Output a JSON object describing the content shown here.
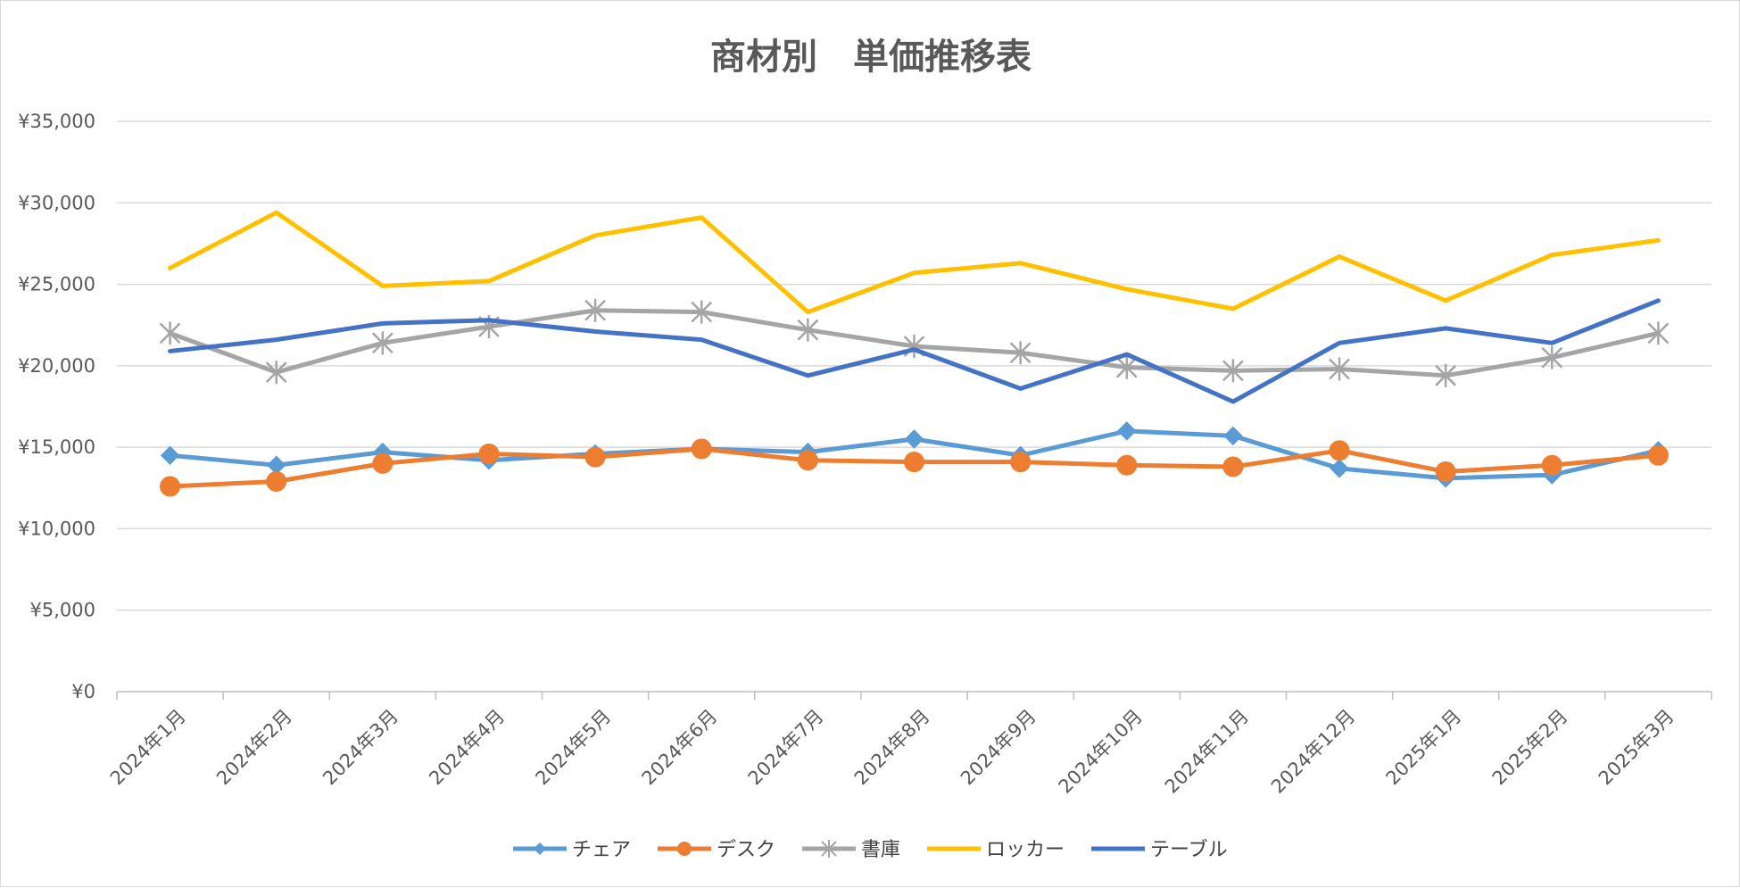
{
  "chart_data": {
    "type": "line",
    "title": "商材別　単価推移表",
    "xlabel": "",
    "ylabel": "",
    "ylim": [
      0,
      35000
    ],
    "yticks": [
      0,
      5000,
      10000,
      15000,
      20000,
      25000,
      30000,
      35000
    ],
    "ytick_labels": [
      "¥0",
      "¥5,000",
      "¥10,000",
      "¥15,000",
      "¥20,000",
      "¥25,000",
      "¥30,000",
      "¥35,000"
    ],
    "grid": true,
    "legend_position": "bottom",
    "categories": [
      "2024年1月",
      "2024年2月",
      "2024年3月",
      "2024年4月",
      "2024年5月",
      "2024年6月",
      "2024年7月",
      "2024年8月",
      "2024年9月",
      "2024年10月",
      "2024年11月",
      "2024年12月",
      "2025年1月",
      "2025年2月",
      "2025年3月"
    ],
    "series": [
      {
        "name": "チェア",
        "color": "#5b9bd5",
        "marker": "diamond",
        "values": [
          14500,
          13900,
          14700,
          14200,
          14600,
          14900,
          14700,
          15500,
          14500,
          16000,
          15700,
          13700,
          13100,
          13300,
          14800
        ]
      },
      {
        "name": "デスク",
        "color": "#ed7d31",
        "marker": "circle",
        "values": [
          12600,
          12900,
          14000,
          14600,
          14400,
          14900,
          14200,
          14100,
          14100,
          13900,
          13800,
          14800,
          13500,
          13900,
          14500
        ]
      },
      {
        "name": "書庫",
        "color": "#a5a5a5",
        "marker": "star",
        "values": [
          22000,
          19600,
          21400,
          22400,
          23400,
          23300,
          22200,
          21200,
          20800,
          19900,
          19700,
          19800,
          19400,
          20500,
          22000
        ]
      },
      {
        "name": "ロッカー",
        "color": "#ffc000",
        "marker": "none",
        "values": [
          26000,
          29400,
          24900,
          25200,
          28000,
          29100,
          23300,
          25700,
          26300,
          24700,
          23500,
          26700,
          24000,
          26800,
          27700
        ]
      },
      {
        "name": "テーブル",
        "color": "#4472c4",
        "marker": "none",
        "values": [
          20900,
          21600,
          22600,
          22800,
          22100,
          21600,
          19400,
          21000,
          18600,
          20700,
          17800,
          21400,
          22300,
          21400,
          24000
        ]
      }
    ]
  }
}
